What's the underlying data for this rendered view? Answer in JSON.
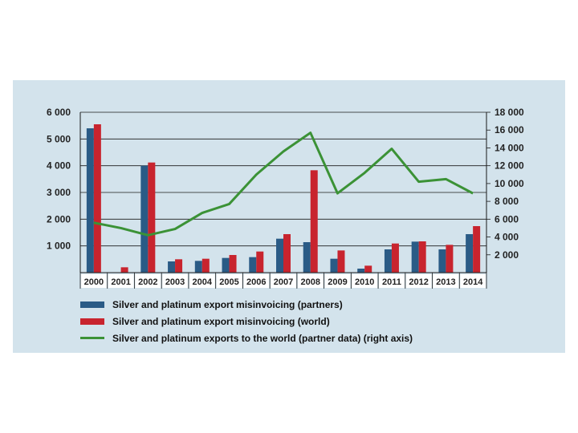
{
  "chart_data": {
    "type": "bar",
    "categories": [
      "2000",
      "2001",
      "2002",
      "2003",
      "2004",
      "2005",
      "2006",
      "2007",
      "2008",
      "2009",
      "2010",
      "2011",
      "2012",
      "2013",
      "2014"
    ],
    "series": [
      {
        "name": "Silver and platinum export misinvoicing (partners)",
        "type": "bar",
        "axis": "left",
        "color": "#2a5b86",
        "values": [
          5400,
          0,
          4000,
          420,
          440,
          550,
          580,
          1270,
          1140,
          520,
          150,
          870,
          1160,
          870,
          1440
        ]
      },
      {
        "name": "Silver and platinum export misinvoicing (world)",
        "type": "bar",
        "axis": "left",
        "color": "#c8242e",
        "values": [
          5550,
          200,
          4120,
          500,
          520,
          660,
          790,
          1440,
          3830,
          830,
          260,
          1090,
          1170,
          1040,
          1740
        ]
      },
      {
        "name": "Silver and platinum exports to the world (partner data) (right axis)",
        "type": "line",
        "axis": "right",
        "color": "#3b9236",
        "values": [
          5600,
          5000,
          4200,
          4900,
          6700,
          7700,
          11000,
          13600,
          15700,
          8900,
          11200,
          13900,
          10200,
          10500,
          8900
        ]
      }
    ],
    "y_left": {
      "ylim": [
        0,
        6000
      ],
      "ticks": [
        "1 000",
        "2 000",
        "3 000",
        "4 000",
        "5 000",
        "6 000"
      ],
      "tick_values": [
        1000,
        2000,
        3000,
        4000,
        5000,
        6000
      ]
    },
    "y_right": {
      "ylim": [
        0,
        18000
      ],
      "ticks": [
        "2 000",
        "4 000",
        "6 000",
        "8 000",
        "10 000",
        "12 000",
        "14 000",
        "16 000",
        "18 000"
      ],
      "tick_values": [
        2000,
        4000,
        6000,
        8000,
        10000,
        12000,
        14000,
        16000,
        18000
      ]
    },
    "grid": true,
    "legend_position": "bottom-left"
  }
}
